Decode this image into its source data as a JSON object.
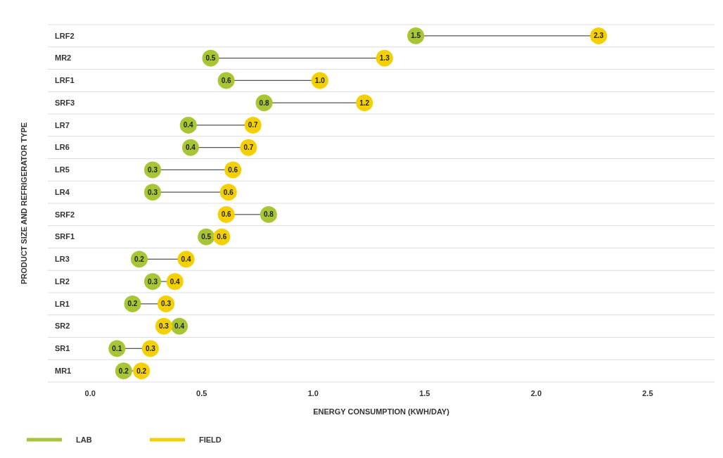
{
  "chart_data": {
    "type": "scatter",
    "orientation": "horizontal",
    "xlabel": "ENERGY CONSUMPTION (KWH/DAY)",
    "ylabel": "PRODUCT SIZE AND REFRIGERATOR TYPE",
    "categories": [
      "LRF2",
      "MR2",
      "LRF1",
      "SRF3",
      "LR7",
      "LR6",
      "LR5",
      "LR4",
      "SRF2",
      "SRF1",
      "LR3",
      "LR2",
      "LR1",
      "SR2",
      "SR1",
      "MR1"
    ],
    "series": [
      {
        "name": "LAB",
        "color": "#a8c536",
        "values": [
          1.46,
          0.54,
          0.61,
          0.78,
          0.44,
          0.45,
          0.28,
          0.28,
          0.8,
          0.52,
          0.22,
          0.28,
          0.19,
          0.4,
          0.12,
          0.15
        ],
        "value_labels": [
          "1.5",
          "0.5",
          "0.6",
          "0.8",
          "0.4",
          "0.4",
          "0.3",
          "0.3",
          "0.8",
          "0.5",
          "0.2",
          "0.3",
          "0.2",
          "0.4",
          "0.1",
          "0.2"
        ]
      },
      {
        "name": "FIELD",
        "color": "#f5d000",
        "values": [
          2.28,
          1.32,
          1.03,
          1.23,
          0.73,
          0.71,
          0.64,
          0.62,
          0.61,
          0.59,
          0.43,
          0.38,
          0.34,
          0.33,
          0.27,
          0.23
        ],
        "value_labels": [
          "2.3",
          "1.3",
          "1.0",
          "1.2",
          "0.7",
          "0.7",
          "0.6",
          "0.6",
          "0.6",
          "0.6",
          "0.4",
          "0.4",
          "0.3",
          "0.3",
          "0.3",
          "0.2"
        ]
      }
    ],
    "xlim": [
      -0.19,
      2.8
    ],
    "xticks": [
      {
        "value": 0,
        "label": "0.0"
      },
      {
        "value": 0.5,
        "label": "0.5"
      },
      {
        "value": 1,
        "label": "1.0"
      },
      {
        "value": 1.5,
        "label": "1.5"
      },
      {
        "value": 2,
        "label": "2.0"
      },
      {
        "value": 2.5,
        "label": "2.5"
      }
    ],
    "grid": "y",
    "legend": "bottom left",
    "marker": "circle"
  }
}
